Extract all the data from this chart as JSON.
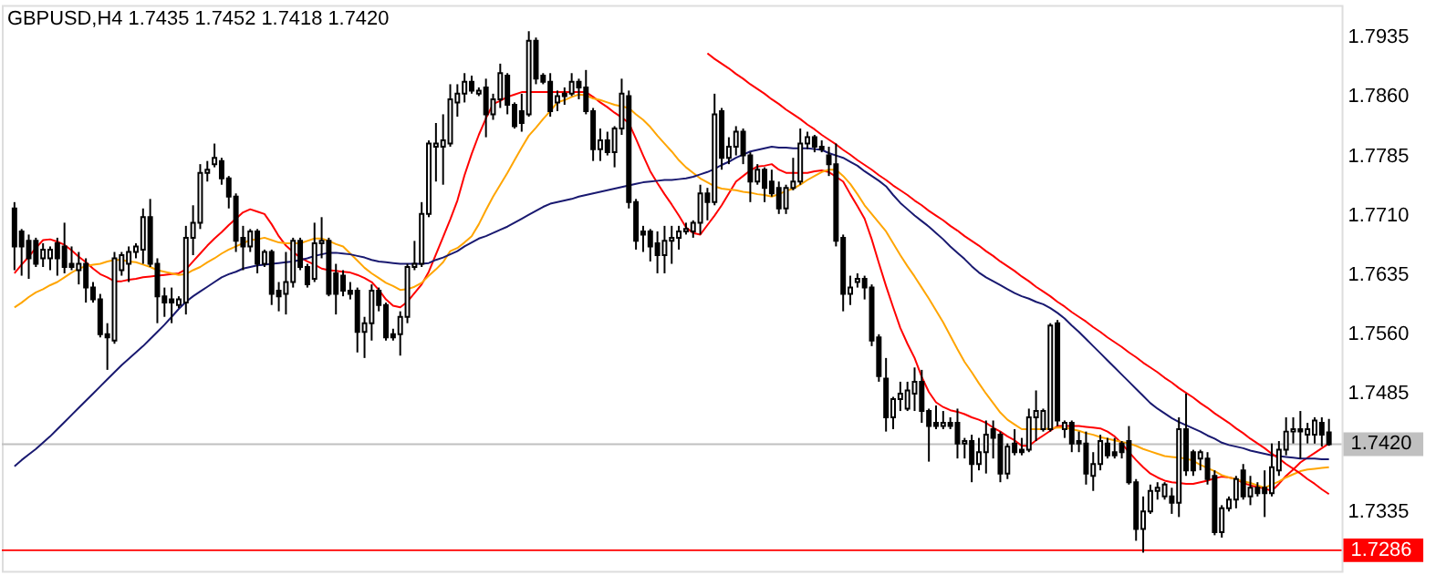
{
  "chart_data": {
    "type": "candlestick",
    "title": "GBPUSD,H4  1.7435 1.7452 1.7418 1.7420",
    "categories": [
      null,
      null,
      null,
      null,
      null,
      null,
      null,
      null,
      null,
      null,
      null,
      null,
      null,
      null,
      null,
      null,
      null,
      null,
      null,
      null,
      null,
      null,
      null,
      null,
      null,
      null,
      null,
      null,
      null,
      null,
      null,
      null,
      null,
      null,
      null,
      null,
      null,
      null,
      null,
      null,
      null,
      null,
      null,
      null,
      null,
      null,
      null,
      null,
      null,
      null,
      null,
      null,
      null,
      null,
      null,
      null,
      null,
      null,
      null,
      null,
      null,
      null,
      null,
      null,
      null,
      null,
      null,
      null,
      null,
      null,
      null,
      null,
      null,
      null,
      null,
      null,
      null,
      null,
      null,
      null,
      null,
      null,
      null,
      null,
      null,
      null,
      null,
      null,
      null,
      null,
      null,
      null,
      null,
      null,
      null,
      null,
      null,
      null,
      null,
      null,
      null,
      null,
      null,
      null,
      null,
      null,
      null,
      null,
      null,
      null,
      null,
      null,
      null,
      null,
      null,
      null,
      null,
      null,
      null,
      null,
      null,
      null,
      null,
      null,
      null,
      null,
      null,
      null,
      null,
      null,
      null,
      null,
      null,
      null,
      null,
      null,
      null,
      null,
      null,
      null,
      null,
      null,
      null,
      null,
      null,
      null,
      null,
      null,
      null,
      null,
      null,
      null,
      null,
      null,
      null,
      null,
      null,
      null,
      null,
      null,
      null,
      null,
      null,
      null,
      null,
      null,
      null,
      null,
      null,
      null,
      null,
      null,
      null,
      null,
      null,
      null,
      null,
      null,
      null,
      null,
      null,
      null,
      null,
      null,
      null
    ],
    "ohlc": [
      [
        1.7718,
        1.7726,
        1.764,
        1.767
      ],
      [
        1.7689,
        1.7692,
        1.7633,
        1.767
      ],
      [
        1.7677,
        1.7685,
        1.7629,
        1.7655
      ],
      [
        1.7677,
        1.7681,
        1.7644,
        1.7648
      ],
      [
        1.7655,
        1.7674,
        1.7644,
        1.7666
      ],
      [
        1.7655,
        1.767,
        1.764,
        1.7666
      ],
      [
        1.7674,
        1.7681,
        1.7633,
        1.7655
      ],
      [
        1.767,
        1.77,
        1.7636,
        1.7644
      ],
      [
        1.7648,
        1.767,
        1.764,
        1.7644
      ],
      [
        1.764,
        1.7663,
        1.7622,
        1.7648
      ],
      [
        1.7648,
        1.7655,
        1.7599,
        1.7618
      ],
      [
        1.7618,
        1.7625,
        1.7599,
        1.7603
      ],
      [
        1.7603,
        1.761,
        1.7555,
        1.7559
      ],
      [
        1.7559,
        1.7573,
        1.7514,
        1.7555
      ],
      [
        1.7551,
        1.7663,
        1.7547,
        1.7655
      ],
      [
        1.764,
        1.7663,
        1.7633,
        1.7659
      ],
      [
        1.7648,
        1.767,
        1.7625,
        1.7663
      ],
      [
        1.7663,
        1.7674,
        1.7655,
        1.767
      ],
      [
        1.7666,
        1.7718,
        1.7648,
        1.7707
      ],
      [
        1.7707,
        1.773,
        1.7644,
        1.7648
      ],
      [
        1.7648,
        1.7655,
        1.7573,
        1.7607
      ],
      [
        1.7607,
        1.7618,
        1.7581,
        1.7599
      ],
      [
        1.7603,
        1.7618,
        1.7573,
        1.7599
      ],
      [
        1.7596,
        1.7607,
        1.7592,
        1.7603
      ],
      [
        1.7599,
        1.7696,
        1.7584,
        1.7681
      ],
      [
        1.7681,
        1.7722,
        1.7659,
        1.77
      ],
      [
        1.77,
        1.7774,
        1.7692,
        1.7763
      ],
      [
        1.7763,
        1.7778,
        1.7752,
        1.7767
      ],
      [
        1.7774,
        1.78,
        1.777,
        1.7782
      ],
      [
        1.7778,
        1.7782,
        1.7748,
        1.7756
      ],
      [
        1.7756,
        1.7759,
        1.7718,
        1.7733
      ],
      [
        1.7733,
        1.7737,
        1.7663,
        1.7677
      ],
      [
        1.7681,
        1.7696,
        1.764,
        1.767
      ],
      [
        1.767,
        1.7692,
        1.7663,
        1.7689
      ],
      [
        1.7689,
        1.7692,
        1.7636,
        1.7648
      ],
      [
        1.7648,
        1.7666,
        1.7644,
        1.7663
      ],
      [
        1.7663,
        1.7666,
        1.7596,
        1.761
      ],
      [
        1.7614,
        1.7625,
        1.7588,
        1.7607
      ],
      [
        1.761,
        1.7663,
        1.7584,
        1.7625
      ],
      [
        1.7625,
        1.7681,
        1.7618,
        1.7677
      ],
      [
        1.7677,
        1.7681,
        1.764,
        1.7644
      ],
      [
        1.7644,
        1.7648,
        1.7618,
        1.7622
      ],
      [
        1.7629,
        1.77,
        1.7625,
        1.7674
      ],
      [
        1.7674,
        1.7707,
        1.7655,
        1.7677
      ],
      [
        1.7677,
        1.7681,
        1.7607,
        1.761
      ],
      [
        1.7636,
        1.7648,
        1.7584,
        1.761
      ],
      [
        1.7633,
        1.764,
        1.7607,
        1.7614
      ],
      [
        1.7614,
        1.7625,
        1.7603,
        1.761
      ],
      [
        1.7614,
        1.7618,
        1.7536,
        1.7562
      ],
      [
        1.7562,
        1.7581,
        1.7529,
        1.7573
      ],
      [
        1.7573,
        1.7622,
        1.7551,
        1.7614
      ],
      [
        1.7614,
        1.7618,
        1.7588,
        1.7596
      ],
      [
        1.7596,
        1.7599,
        1.7551,
        1.7555
      ],
      [
        1.7559,
        1.7566,
        1.7551,
        1.7555
      ],
      [
        1.7559,
        1.7588,
        1.7532,
        1.7581
      ],
      [
        1.7581,
        1.7648,
        1.7573,
        1.7644
      ],
      [
        1.7644,
        1.7677,
        1.764,
        1.7648
      ],
      [
        1.7648,
        1.7726,
        1.7644,
        1.7711
      ],
      [
        1.7711,
        1.7804,
        1.7707,
        1.78
      ],
      [
        1.7796,
        1.7826,
        1.7752,
        1.78
      ],
      [
        1.7796,
        1.7837,
        1.7748,
        1.7804
      ],
      [
        1.78,
        1.7875,
        1.7796,
        1.7856
      ],
      [
        1.7852,
        1.7875,
        1.7834,
        1.7863
      ],
      [
        1.7863,
        1.7889,
        1.7852,
        1.7878
      ],
      [
        1.7878,
        1.7886,
        1.7863,
        1.7867
      ],
      [
        1.7863,
        1.7871,
        1.786,
        1.7867
      ],
      [
        1.7871,
        1.7882,
        1.7808,
        1.7837
      ],
      [
        1.7837,
        1.7863,
        1.783,
        1.7856
      ],
      [
        1.7856,
        1.7901,
        1.7845,
        1.7889
      ],
      [
        1.7886,
        1.7889,
        1.7837,
        1.7849
      ],
      [
        1.7849,
        1.7852,
        1.7819,
        1.7822
      ],
      [
        1.7841,
        1.7863,
        1.7815,
        1.7826
      ],
      [
        1.7837,
        1.7942,
        1.7834,
        1.793
      ],
      [
        1.793,
        1.7934,
        1.7875,
        1.7882
      ],
      [
        1.7886,
        1.7889,
        1.7875,
        1.7878
      ],
      [
        1.7878,
        1.7889,
        1.7834,
        1.7841
      ],
      [
        1.7852,
        1.7867,
        1.7841,
        1.786
      ],
      [
        1.7863,
        1.7871,
        1.7849,
        1.786
      ],
      [
        1.7863,
        1.7889,
        1.786,
        1.7878
      ],
      [
        1.7878,
        1.7882,
        1.7856,
        1.7871
      ],
      [
        1.7871,
        1.7893,
        1.7837,
        1.7841
      ],
      [
        1.7841,
        1.7845,
        1.7778,
        1.7793
      ],
      [
        1.7793,
        1.7819,
        1.7778,
        1.7804
      ],
      [
        1.7804,
        1.7815,
        1.7785,
        1.7789
      ],
      [
        1.7789,
        1.7822,
        1.777,
        1.7819
      ],
      [
        1.7819,
        1.7882,
        1.7811,
        1.7863
      ],
      [
        1.786,
        1.7867,
        1.7718,
        1.7726
      ],
      [
        1.7726,
        1.773,
        1.7666,
        1.7677
      ],
      [
        1.7689,
        1.7696,
        1.7663,
        1.7685
      ],
      [
        1.7689,
        1.7692,
        1.7651,
        1.767
      ],
      [
        1.7674,
        1.7689,
        1.7636,
        1.7659
      ],
      [
        1.7659,
        1.7696,
        1.7636,
        1.7677
      ],
      [
        1.7677,
        1.7696,
        1.7648,
        1.7681
      ],
      [
        1.7681,
        1.7696,
        1.7666,
        1.7689
      ],
      [
        1.7689,
        1.77,
        1.7685,
        1.7692
      ],
      [
        1.7689,
        1.7703,
        1.7681,
        1.77
      ],
      [
        1.77,
        1.7748,
        1.7685,
        1.7737
      ],
      [
        1.7737,
        1.7744,
        1.7703,
        1.7726
      ],
      [
        1.7726,
        1.7863,
        1.7722,
        1.7837
      ],
      [
        1.7841,
        1.7845,
        1.7767,
        1.7782
      ],
      [
        1.7782,
        1.7808,
        1.7774,
        1.7796
      ],
      [
        1.7796,
        1.7822,
        1.7785,
        1.7815
      ],
      [
        1.7815,
        1.7819,
        1.7774,
        1.7785
      ],
      [
        1.7785,
        1.7789,
        1.7726,
        1.7752
      ],
      [
        1.7752,
        1.7774,
        1.7748,
        1.7767
      ],
      [
        1.7767,
        1.777,
        1.7726,
        1.7744
      ],
      [
        1.7752,
        1.7767,
        1.7733,
        1.7737
      ],
      [
        1.7744,
        1.7752,
        1.7711,
        1.7718
      ],
      [
        1.7718,
        1.7748,
        1.7711,
        1.7744
      ],
      [
        1.7744,
        1.7782,
        1.7741,
        1.7752
      ],
      [
        1.7752,
        1.7819,
        1.7748,
        1.78
      ],
      [
        1.78,
        1.7815,
        1.7793,
        1.7808
      ],
      [
        1.7808,
        1.7811,
        1.7789,
        1.7796
      ],
      [
        1.7796,
        1.7804,
        1.7789,
        1.7793
      ],
      [
        1.7785,
        1.7796,
        1.7759,
        1.7774
      ],
      [
        1.7774,
        1.78,
        1.767,
        1.7677
      ],
      [
        1.7681,
        1.7685,
        1.7588,
        1.761
      ],
      [
        1.761,
        1.7633,
        1.7596,
        1.7618
      ],
      [
        1.7625,
        1.7636,
        1.7618,
        1.7629
      ],
      [
        1.7629,
        1.7633,
        1.7603,
        1.7618
      ],
      [
        1.7618,
        1.7622,
        1.7544,
        1.7551
      ],
      [
        1.7555,
        1.7559,
        1.7499,
        1.7506
      ],
      [
        1.7503,
        1.7529,
        1.7436,
        1.7454
      ],
      [
        1.7454,
        1.748,
        1.7439,
        1.7477
      ],
      [
        1.7477,
        1.7499,
        1.7462,
        1.7484
      ],
      [
        1.7465,
        1.7499,
        1.7462,
        1.7488
      ],
      [
        1.7484,
        1.7517,
        1.7462,
        1.7499
      ],
      [
        1.7499,
        1.7514,
        1.7447,
        1.7462
      ],
      [
        1.7462,
        1.7465,
        1.7398,
        1.7443
      ],
      [
        1.7447,
        1.7469,
        1.7439,
        1.7443
      ],
      [
        1.7443,
        1.7462,
        1.7439,
        1.7447
      ],
      [
        1.7447,
        1.7454,
        1.7439,
        1.7443
      ],
      [
        1.7447,
        1.7465,
        1.7402,
        1.7421
      ],
      [
        1.7421,
        1.7428,
        1.7402,
        1.7424
      ],
      [
        1.7424,
        1.7432,
        1.7372,
        1.7395
      ],
      [
        1.7395,
        1.7428,
        1.7387,
        1.741
      ],
      [
        1.741,
        1.745,
        1.7383,
        1.7432
      ],
      [
        1.7439,
        1.745,
        1.7402,
        1.7428
      ],
      [
        1.7432,
        1.7436,
        1.7372,
        1.7383
      ],
      [
        1.7383,
        1.7421,
        1.7376,
        1.7417
      ],
      [
        1.7421,
        1.7439,
        1.7406,
        1.741
      ],
      [
        1.7413,
        1.7428,
        1.7406,
        1.741
      ],
      [
        1.7413,
        1.7465,
        1.741,
        1.7454
      ],
      [
        1.7454,
        1.7488,
        1.7424,
        1.7462
      ],
      [
        1.7439,
        1.7465,
        1.7436,
        1.7462
      ],
      [
        1.7439,
        1.7573,
        1.7436,
        1.757
      ],
      [
        1.7573,
        1.7577,
        1.7443,
        1.745
      ],
      [
        1.7439,
        1.745,
        1.7428,
        1.7447
      ],
      [
        1.7447,
        1.745,
        1.741,
        1.7421
      ],
      [
        1.7424,
        1.7436,
        1.741,
        1.7421
      ],
      [
        1.7421,
        1.7436,
        1.7369,
        1.7383
      ],
      [
        1.738,
        1.741,
        1.7361,
        1.7395
      ],
      [
        1.7395,
        1.7432,
        1.7387,
        1.7424
      ],
      [
        1.7421,
        1.7428,
        1.7402,
        1.7406
      ],
      [
        1.741,
        1.7428,
        1.7402,
        1.7406
      ],
      [
        1.7421,
        1.7424,
        1.7402,
        1.741
      ],
      [
        1.7424,
        1.7443,
        1.7369,
        1.7372
      ],
      [
        1.7372,
        1.7376,
        1.7298,
        1.7313
      ],
      [
        1.7313,
        1.7354,
        1.7283,
        1.7335
      ],
      [
        1.7335,
        1.7369,
        1.7332,
        1.7361
      ],
      [
        1.7361,
        1.7372,
        1.735,
        1.7365
      ],
      [
        1.7354,
        1.7372,
        1.735,
        1.7369
      ],
      [
        1.7354,
        1.7365,
        1.7332,
        1.7346
      ],
      [
        1.7346,
        1.7454,
        1.7328,
        1.7439
      ],
      [
        1.7439,
        1.7484,
        1.738,
        1.7387
      ],
      [
        1.741,
        1.7413,
        1.738,
        1.7387
      ],
      [
        1.7402,
        1.7413,
        1.7387,
        1.741
      ],
      [
        1.7402,
        1.741,
        1.7369,
        1.7376
      ],
      [
        1.738,
        1.7387,
        1.7305,
        1.7309
      ],
      [
        1.7309,
        1.7343,
        1.7302,
        1.7339
      ],
      [
        1.7339,
        1.7354,
        1.7335,
        1.735
      ],
      [
        1.735,
        1.738,
        1.7339,
        1.7376
      ],
      [
        1.7387,
        1.7395,
        1.735,
        1.7354
      ],
      [
        1.7354,
        1.738,
        1.7343,
        1.7365
      ],
      [
        1.7365,
        1.7372,
        1.7354,
        1.7358
      ],
      [
        1.7365,
        1.7387,
        1.7328,
        1.7358
      ],
      [
        1.7358,
        1.7421,
        1.7354,
        1.7391
      ],
      [
        1.7387,
        1.7424,
        1.738,
        1.7413
      ],
      [
        1.7413,
        1.7454,
        1.7406,
        1.7436
      ],
      [
        1.7436,
        1.7454,
        1.7421,
        1.7439
      ],
      [
        1.7439,
        1.7462,
        1.7402,
        1.7436
      ],
      [
        1.7432,
        1.7447,
        1.7421,
        1.7439
      ],
      [
        1.7432,
        1.7454,
        1.7421,
        1.745
      ],
      [
        1.7447,
        1.7454,
        1.7417,
        1.7432
      ],
      [
        1.7435,
        1.7452,
        1.7418,
        1.742
      ]
    ],
    "series": [
      {
        "type": "line",
        "color": "#ff0000",
        "values": [
          1.7636,
          1.7647,
          1.7657,
          1.7668,
          1.7678,
          1.7679,
          1.7676,
          1.7672,
          1.7665,
          1.7657,
          1.765,
          1.7642,
          1.7635,
          1.7631,
          1.7626,
          1.7626,
          1.7628,
          1.7629,
          1.7631,
          1.7632,
          1.7633,
          1.7634,
          1.7635,
          1.7636,
          1.7641,
          1.7651,
          1.7661,
          1.7671,
          1.768,
          1.7688,
          1.7697,
          1.7705,
          1.7713,
          1.7717,
          1.7714,
          1.7711,
          1.7698,
          1.7683,
          1.7671,
          1.7663,
          1.7656,
          1.7651,
          1.7647,
          1.7642,
          1.764,
          1.7639,
          1.7638,
          1.7637,
          1.7634,
          1.763,
          1.7625,
          1.7615,
          1.7603,
          1.7595,
          1.7593,
          1.76,
          1.7611,
          1.7622,
          1.7638,
          1.766,
          1.7682,
          1.7704,
          1.7728,
          1.776,
          1.7787,
          1.7811,
          1.7832,
          1.785,
          1.7854,
          1.7859,
          1.7862,
          1.7865,
          1.7865,
          1.7865,
          1.7865,
          1.7865,
          1.7865,
          1.7865,
          1.7865,
          1.7865,
          1.7865,
          1.7859,
          1.7852,
          1.7846,
          1.7839,
          1.7833,
          1.7826,
          1.7806,
          1.7785,
          1.7765,
          1.775,
          1.7736,
          1.7723,
          1.7709,
          1.7694,
          1.7687,
          1.7685,
          1.7697,
          1.7709,
          1.7722,
          1.7737,
          1.7752,
          1.7759,
          1.7766,
          1.7771,
          1.7772,
          1.7774,
          1.7767,
          1.7763,
          1.7763,
          1.7763,
          1.7763,
          1.7765,
          1.7766,
          1.7764,
          1.7758,
          1.7752,
          1.7736,
          1.7721,
          1.7705,
          1.7679,
          1.7649,
          1.762,
          1.7593,
          1.7567,
          1.7547,
          1.7529,
          1.7505,
          1.7486,
          1.7473,
          1.7467,
          1.7463,
          1.7461,
          1.7458,
          1.7454,
          1.7451,
          1.7447,
          1.7441,
          1.7436,
          1.743,
          1.7425,
          1.7418,
          1.7418,
          1.7425,
          1.7431,
          1.7437,
          1.7443,
          1.7443,
          1.7443,
          1.7443,
          1.7442,
          1.7441,
          1.744,
          1.7436,
          1.743,
          1.7421,
          1.741,
          1.74,
          1.7391,
          1.7383,
          1.7378,
          1.7374,
          1.7372,
          1.7371,
          1.737,
          1.737,
          1.7372,
          1.7374,
          1.7377,
          1.7379,
          1.7378,
          1.7376,
          1.7371,
          1.7368,
          1.7366,
          1.7364,
          1.7361,
          1.737,
          1.738,
          1.7388,
          1.7397,
          1.7403,
          1.7409,
          1.7415,
          1.7421
        ]
      },
      {
        "type": "line",
        "color": "#ffa500",
        "values": [
          1.7593,
          1.7599,
          1.7606,
          1.7612,
          1.7616,
          1.7621,
          1.7625,
          1.7631,
          1.7637,
          1.7642,
          1.7645,
          1.7647,
          1.7648,
          1.7651,
          1.7653,
          1.7653,
          1.7651,
          1.765,
          1.7647,
          1.7644,
          1.764,
          1.7638,
          1.7636,
          1.7634,
          1.7635,
          1.764,
          1.7644,
          1.765,
          1.7655,
          1.7661,
          1.7666,
          1.767,
          1.7674,
          1.7678,
          1.7679,
          1.7681,
          1.7678,
          1.7675,
          1.7674,
          1.7674,
          1.7674,
          1.7677,
          1.768,
          1.768,
          1.7677,
          1.7673,
          1.767,
          1.7661,
          1.7652,
          1.7643,
          1.7636,
          1.763,
          1.7624,
          1.762,
          1.7615,
          1.7616,
          1.7619,
          1.7624,
          1.7633,
          1.7641,
          1.765,
          1.7664,
          1.7668,
          1.7675,
          1.7683,
          1.7698,
          1.7716,
          1.7733,
          1.7748,
          1.7763,
          1.7779,
          1.7795,
          1.781,
          1.782,
          1.7831,
          1.7841,
          1.7852,
          1.7855,
          1.7859,
          1.7862,
          1.7861,
          1.7857,
          1.7855,
          1.7852,
          1.7849,
          1.7847,
          1.7845,
          1.7837,
          1.783,
          1.7821,
          1.781,
          1.78,
          1.779,
          1.7779,
          1.777,
          1.7763,
          1.7756,
          1.7751,
          1.7746,
          1.7743,
          1.7742,
          1.7741,
          1.7739,
          1.7738,
          1.7736,
          1.7735,
          1.7733,
          1.7736,
          1.774,
          1.7743,
          1.7748,
          1.7754,
          1.7759,
          1.7764,
          1.7767,
          1.7767,
          1.7759,
          1.7749,
          1.7736,
          1.7722,
          1.7711,
          1.77,
          1.7689,
          1.7674,
          1.7659,
          1.7645,
          1.7632,
          1.7618,
          1.7604,
          1.7589,
          1.7574,
          1.7557,
          1.754,
          1.7524,
          1.7511,
          1.7497,
          1.7484,
          1.7472,
          1.746,
          1.7451,
          1.7445,
          1.7439,
          1.7439,
          1.7439,
          1.7439,
          1.744,
          1.7441,
          1.7441,
          1.7439,
          1.7437,
          1.7434,
          1.7432,
          1.7429,
          1.7427,
          1.7425,
          1.7423,
          1.7421,
          1.7418,
          1.7414,
          1.7411,
          1.7408,
          1.7405,
          1.7404,
          1.7403,
          1.7402,
          1.7399,
          1.7394,
          1.739,
          1.7386,
          1.7381,
          1.7378,
          1.7376,
          1.7373,
          1.7371,
          1.7368,
          1.7365,
          1.7369,
          1.7373,
          1.7378,
          1.7382,
          1.7386,
          1.7388,
          1.7389,
          1.739,
          1.7391
        ]
      },
      {
        "type": "line",
        "color": "#191970",
        "values": [
          1.7392,
          1.74,
          1.7407,
          1.7414,
          1.7422,
          1.743,
          1.7439,
          1.7448,
          1.7457,
          1.7466,
          1.7475,
          1.7484,
          1.7493,
          1.7502,
          1.7511,
          1.752,
          1.7528,
          1.7536,
          1.7544,
          1.7553,
          1.7562,
          1.7571,
          1.7581,
          1.7591,
          1.76,
          1.7607,
          1.7613,
          1.7619,
          1.7625,
          1.7631,
          1.7635,
          1.7638,
          1.7642,
          1.7644,
          1.7646,
          1.7647,
          1.7648,
          1.7649,
          1.765,
          1.7651,
          1.7653,
          1.7655,
          1.7658,
          1.766,
          1.7662,
          1.7662,
          1.7661,
          1.766,
          1.7658,
          1.7656,
          1.7653,
          1.7651,
          1.765,
          1.7649,
          1.7648,
          1.7648,
          1.7648,
          1.7648,
          1.7649,
          1.7653,
          1.7656,
          1.766,
          1.7664,
          1.767,
          1.7675,
          1.768,
          1.7683,
          1.7687,
          1.7691,
          1.7695,
          1.77,
          1.7705,
          1.771,
          1.7715,
          1.772,
          1.7724,
          1.7726,
          1.7728,
          1.773,
          1.7733,
          1.7735,
          1.7737,
          1.7739,
          1.7741,
          1.7743,
          1.7745,
          1.7747,
          1.7749,
          1.7751,
          1.7752,
          1.7753,
          1.7754,
          1.7754,
          1.7755,
          1.7756,
          1.7758,
          1.7761,
          1.7764,
          1.7768,
          1.7773,
          1.7777,
          1.7782,
          1.7786,
          1.779,
          1.7792,
          1.7794,
          1.7796,
          1.7795,
          1.7795,
          1.7794,
          1.7794,
          1.7794,
          1.7793,
          1.7792,
          1.7788,
          1.7785,
          1.7782,
          1.7777,
          1.7772,
          1.7765,
          1.7759,
          1.7753,
          1.7746,
          1.7735,
          1.7725,
          1.7717,
          1.7709,
          1.7702,
          1.7695,
          1.7687,
          1.7679,
          1.767,
          1.7662,
          1.7654,
          1.7645,
          1.7637,
          1.7631,
          1.7626,
          1.7621,
          1.7616,
          1.7611,
          1.7607,
          1.7604,
          1.76,
          1.7597,
          1.7592,
          1.7586,
          1.7579,
          1.757,
          1.7562,
          1.7553,
          1.7544,
          1.7535,
          1.7526,
          1.7517,
          1.7508,
          1.7499,
          1.749,
          1.7481,
          1.7472,
          1.7465,
          1.7459,
          1.7453,
          1.7448,
          1.7444,
          1.744,
          1.7436,
          1.7431,
          1.7427,
          1.7422,
          1.7419,
          1.7417,
          1.7415,
          1.7412,
          1.741,
          1.7408,
          1.7406,
          1.7405,
          1.7404,
          1.7403,
          1.7402,
          1.7402,
          1.7402,
          1.7401,
          1.7401
        ]
      },
      {
        "type": "line",
        "color": "#ff0000",
        "values": [
          null,
          null,
          null,
          null,
          null,
          null,
          null,
          null,
          null,
          null,
          null,
          null,
          null,
          null,
          null,
          null,
          null,
          null,
          null,
          null,
          null,
          null,
          null,
          null,
          null,
          null,
          null,
          null,
          null,
          null,
          null,
          null,
          null,
          null,
          null,
          null,
          null,
          null,
          null,
          null,
          null,
          null,
          null,
          null,
          null,
          null,
          null,
          null,
          null,
          null,
          null,
          null,
          null,
          null,
          null,
          null,
          null,
          null,
          null,
          null,
          null,
          null,
          null,
          null,
          null,
          null,
          null,
          null,
          null,
          null,
          null,
          null,
          null,
          null,
          null,
          null,
          null,
          null,
          null,
          null,
          null,
          null,
          null,
          null,
          null,
          null,
          null,
          null,
          null,
          null,
          null,
          null,
          null,
          null,
          null,
          null,
          null,
          1.7914,
          1.7907,
          1.7901,
          1.7895,
          1.7888,
          1.7882,
          1.7875,
          1.7869,
          1.7863,
          1.7856,
          1.785,
          1.7843,
          1.7837,
          1.7831,
          1.7824,
          1.7818,
          1.7811,
          1.7805,
          1.7799,
          1.7792,
          1.7786,
          1.7779,
          1.7773,
          1.7767,
          1.776,
          1.7754,
          1.7747,
          1.7741,
          1.7735,
          1.7728,
          1.7722,
          1.7715,
          1.7709,
          1.7703,
          1.7696,
          1.769,
          1.7683,
          1.7677,
          1.7671,
          1.7664,
          1.7658,
          1.7651,
          1.7645,
          1.7639,
          1.7632,
          1.7626,
          1.7619,
          1.7613,
          1.7607,
          1.76,
          1.7594,
          1.7587,
          1.7581,
          1.7575,
          1.7568,
          1.7562,
          1.7555,
          1.7549,
          1.7543,
          1.7536,
          1.753,
          1.7523,
          1.7517,
          1.7511,
          1.7504,
          1.7498,
          1.7491,
          1.7485,
          1.7479,
          1.7472,
          1.7466,
          1.7459,
          1.7453,
          1.7447,
          1.744,
          1.7434,
          1.7427,
          1.7421,
          1.7415,
          1.7408,
          1.7402,
          1.7395,
          1.7389,
          1.7383,
          1.7376,
          1.737,
          1.7363,
          1.7357
        ]
      }
    ],
    "ylim": [
      1.726,
      1.7975
    ],
    "yticks": [
      {
        "value": 1.7935,
        "label": "1.7935"
      },
      {
        "value": 1.786,
        "label": "1.7860"
      },
      {
        "value": 1.7785,
        "label": "1.7785"
      },
      {
        "value": 1.771,
        "label": "1.7710"
      },
      {
        "value": 1.7635,
        "label": "1.7635"
      },
      {
        "value": 1.756,
        "label": "1.7560"
      },
      {
        "value": 1.7485,
        "label": "1.7485"
      },
      {
        "value": 1.7335,
        "label": "1.7335"
      }
    ],
    "ref_lines": [
      {
        "axis": "y",
        "value": 1.742,
        "label": "1.7420",
        "color": "#c0c0c0"
      },
      {
        "axis": "y",
        "value": 1.7286,
        "label": "1.7286",
        "color": "#ff0000"
      }
    ],
    "tick_labels": "y",
    "grid": false,
    "marker": "none"
  }
}
